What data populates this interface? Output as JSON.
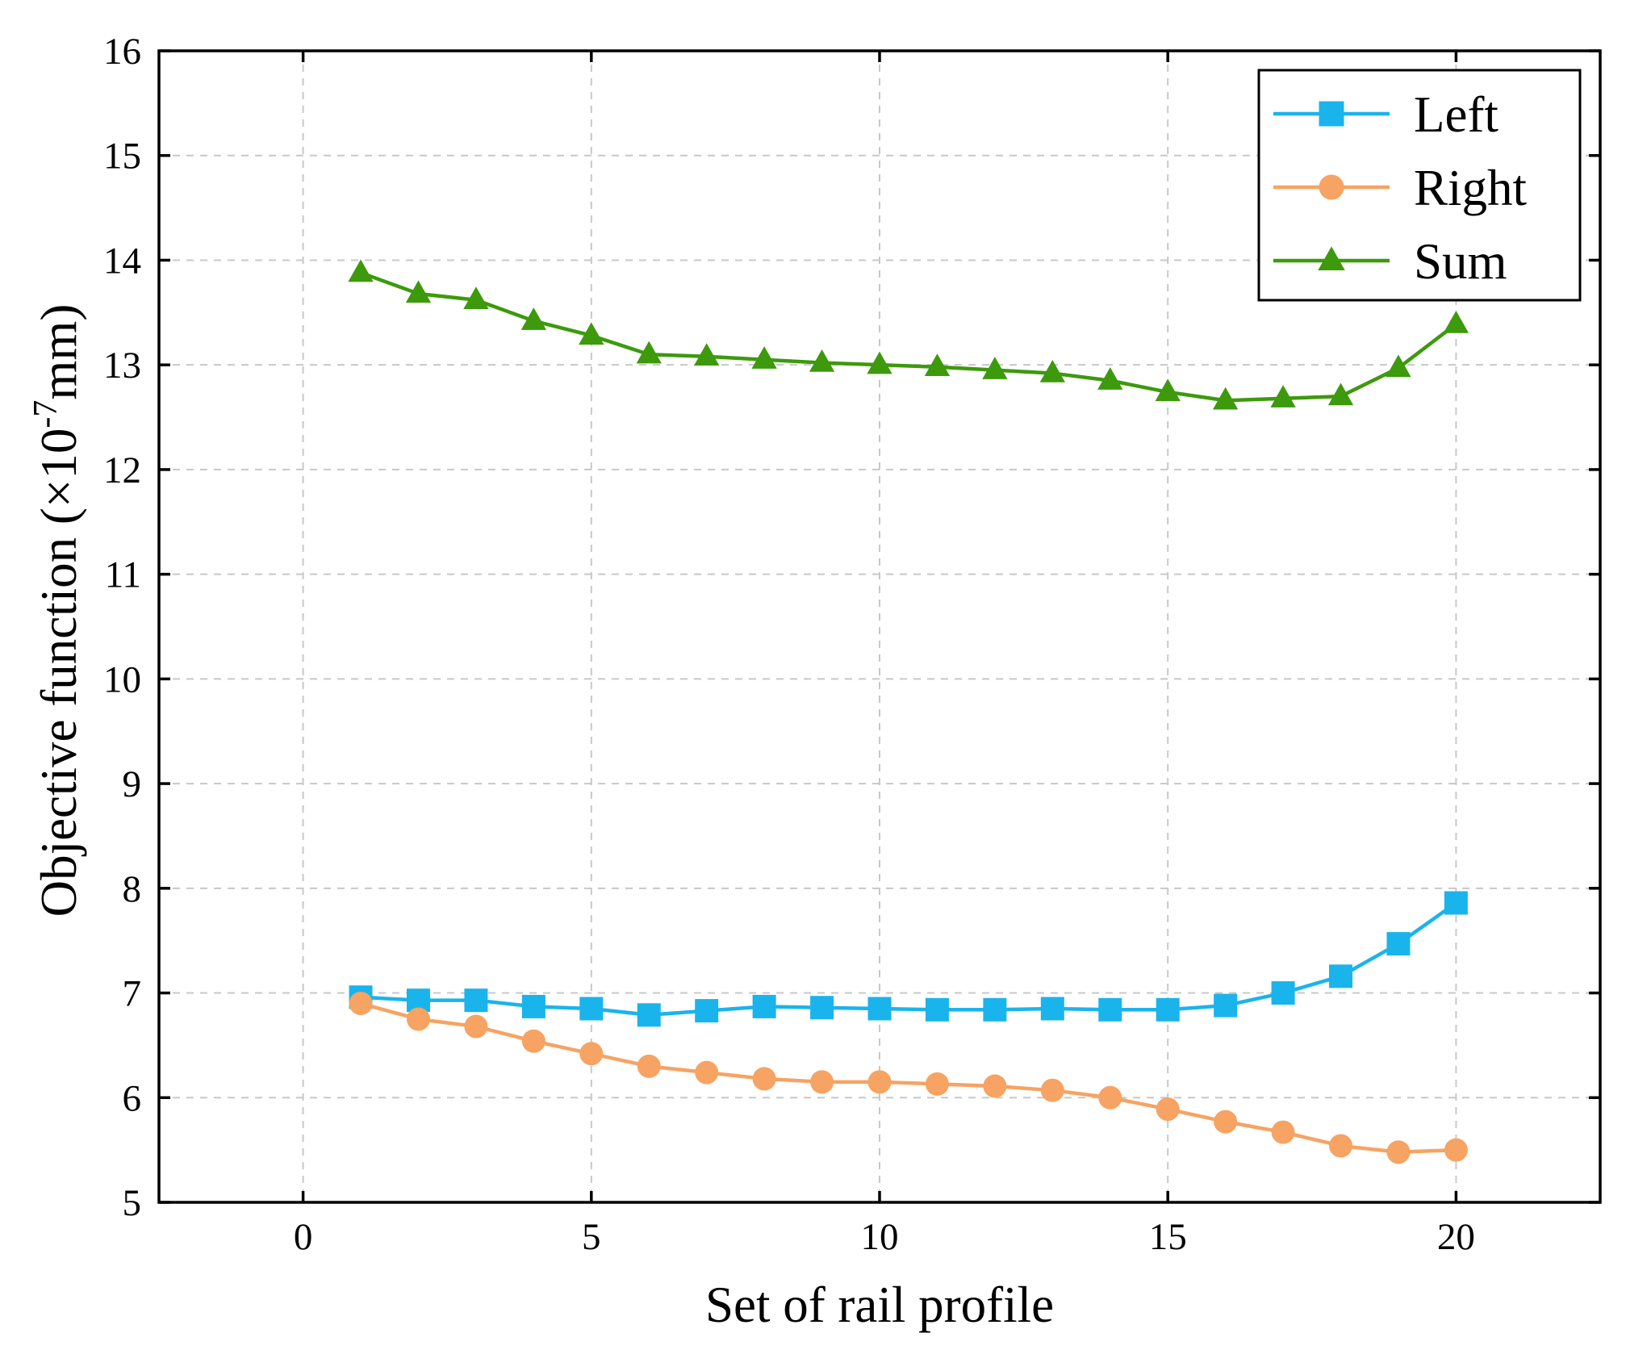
{
  "chart_data": {
    "type": "line",
    "title": "",
    "xlabel": "Set of rail profile",
    "ylabel_main": "Objective function (×10",
    "ylabel_exponent": "-7",
    "ylabel_unit": "mm)",
    "xlim": [
      -2.5,
      22.5
    ],
    "ylim": [
      5,
      16
    ],
    "xticks": [
      0,
      5,
      10,
      15,
      20
    ],
    "yticks": [
      5,
      6,
      7,
      8,
      9,
      10,
      11,
      12,
      13,
      14,
      15,
      16
    ],
    "grid": true,
    "legend_position": "top-right",
    "x": [
      1,
      2,
      3,
      4,
      5,
      6,
      7,
      8,
      9,
      10,
      11,
      12,
      13,
      14,
      15,
      16,
      17,
      18,
      19,
      20
    ],
    "series": [
      {
        "name": "Left",
        "marker": "square",
        "color": "#1ab4ec",
        "values": [
          6.96,
          6.93,
          6.93,
          6.87,
          6.85,
          6.79,
          6.83,
          6.87,
          6.86,
          6.85,
          6.84,
          6.84,
          6.85,
          6.84,
          6.84,
          6.88,
          7.0,
          7.16,
          7.47,
          7.86
        ]
      },
      {
        "name": "Right",
        "marker": "circle",
        "color": "#f6a363",
        "values": [
          6.9,
          6.75,
          6.68,
          6.54,
          6.42,
          6.3,
          6.24,
          6.18,
          6.15,
          6.15,
          6.13,
          6.11,
          6.07,
          6.0,
          5.89,
          5.77,
          5.67,
          5.54,
          5.48,
          5.5
        ]
      },
      {
        "name": "Sum",
        "marker": "triangle",
        "color": "#3c9a0c",
        "values": [
          13.88,
          13.68,
          13.62,
          13.42,
          13.28,
          13.1,
          13.08,
          13.05,
          13.02,
          13.0,
          12.98,
          12.95,
          12.92,
          12.85,
          12.74,
          12.66,
          12.68,
          12.7,
          12.97,
          13.39
        ]
      }
    ]
  }
}
